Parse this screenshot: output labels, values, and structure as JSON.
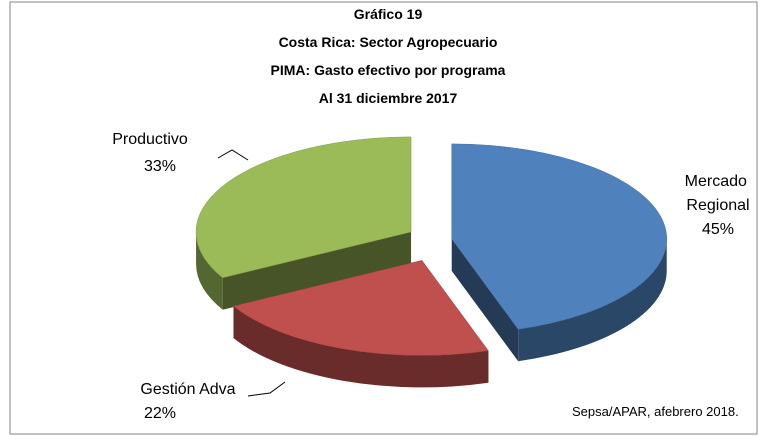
{
  "chart_data": {
    "type": "pie",
    "title": [
      "Gráfico 19",
      "Costa Rica: Sector Agropecuario",
      "PIMA: Gasto efectivo por programa",
      "Al 31 diciembre 2017"
    ],
    "categories": [
      "Mercado Regional",
      "Gestión Adva",
      "Productivo"
    ],
    "values": [
      45,
      22,
      33
    ],
    "value_labels": [
      "45%",
      "22%",
      "33%"
    ],
    "colors": [
      "#4f81bd",
      "#c0504d",
      "#9bbb59"
    ],
    "source": "Sepsa/APAR, afebrero 2018."
  }
}
